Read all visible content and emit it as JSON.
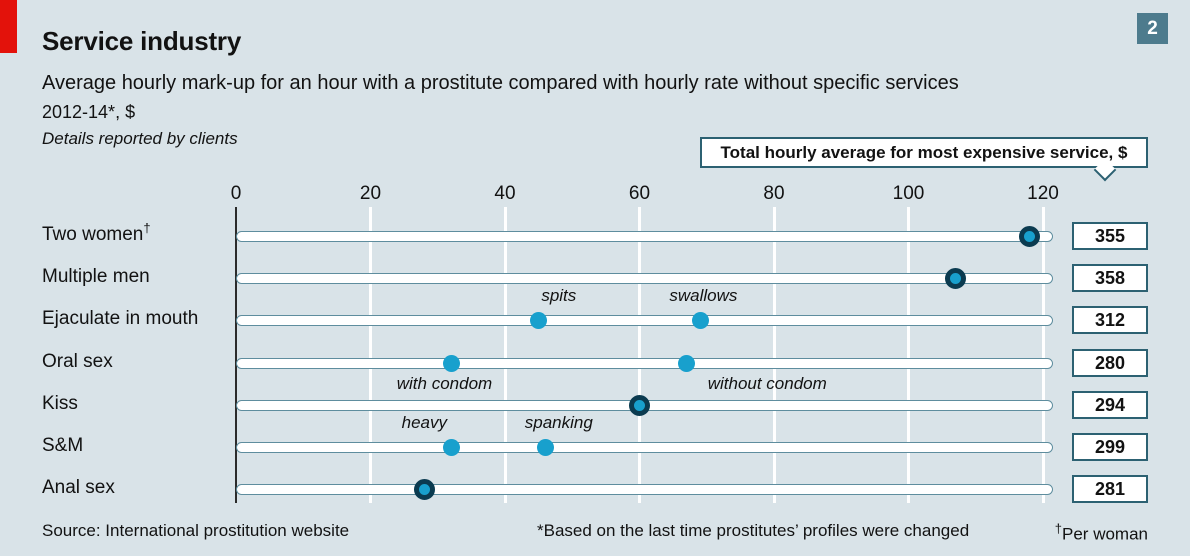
{
  "header": {
    "title": "Service industry",
    "subtitle": "Average hourly mark-up for an hour with a prostitute compared with hourly rate without specific services",
    "unit_line": "2012-14*, $",
    "detail_line": "Details reported by clients",
    "index_badge": "2"
  },
  "callout": {
    "label": "Total hourly average for most expensive service, $"
  },
  "chart_data": {
    "type": "scatter",
    "title": "Service industry",
    "x_ticks": [
      0,
      20,
      40,
      60,
      80,
      100,
      120
    ],
    "xlim": [
      0,
      120
    ],
    "grid": "white vertical gridlines on tick values",
    "rows": [
      {
        "label": "Two women",
        "label_sup": "†",
        "total": 355,
        "points": [
          {
            "value": 118,
            "style": "ringed"
          }
        ]
      },
      {
        "label": "Multiple men",
        "total": 358,
        "points": [
          {
            "value": 107,
            "style": "ringed"
          }
        ]
      },
      {
        "label": "Ejaculate in mouth",
        "total": 312,
        "points": [
          {
            "value": 45,
            "style": "plain",
            "tag": "spits",
            "tag_side": "above",
            "tag_x": 48
          },
          {
            "value": 69,
            "style": "plain",
            "tag": "swallows",
            "tag_side": "above",
            "tag_x": 69.5
          }
        ]
      },
      {
        "label": "Oral sex",
        "total": 280,
        "points": [
          {
            "value": 32,
            "style": "plain",
            "tag": "with condom",
            "tag_side": "below",
            "tag_x": 31
          },
          {
            "value": 67,
            "style": "plain",
            "tag": "without condom",
            "tag_side": "below",
            "tag_x": 79
          }
        ]
      },
      {
        "label": "Kiss",
        "total": 294,
        "points": [
          {
            "value": 60,
            "style": "ringed"
          }
        ]
      },
      {
        "label": "S&M",
        "total": 299,
        "points": [
          {
            "value": 32,
            "style": "plain",
            "tag": "heavy",
            "tag_side": "above",
            "tag_x": 28
          },
          {
            "value": 46,
            "style": "plain",
            "tag": "spanking",
            "tag_side": "above",
            "tag_x": 48
          }
        ]
      },
      {
        "label": "Anal sex",
        "total": 281,
        "points": [
          {
            "value": 28,
            "style": "ringed"
          }
        ]
      }
    ]
  },
  "footer": {
    "source": "Source: International prostitution website",
    "note1": "*Based on the last time prostitutes’ profiles were changed",
    "note2_mark": "†",
    "note2_text": "Per woman"
  },
  "colors": {
    "background": "#d9e3e8",
    "accent_red": "#e3120b",
    "badge_teal": "#4d7b8d",
    "dot_cyan": "#18a0cd",
    "dot_ring": "#0b3b50",
    "box_border_teal": "#2c6172",
    "track_outline": "#5e8d9e",
    "gridline": "#ffffff",
    "text": "#121212"
  }
}
